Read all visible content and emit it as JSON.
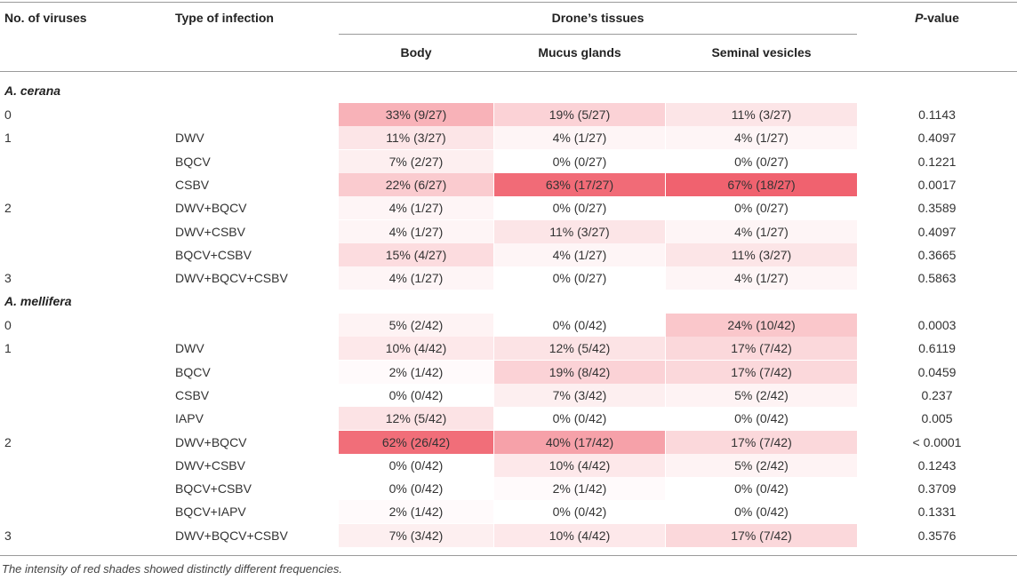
{
  "header": {
    "col_viruses": "No. of viruses",
    "col_type": "Type of infection",
    "col_tissues": "Drone’s tissues",
    "col_body": "Body",
    "col_mucus": "Mucus glands",
    "col_seminal": "Seminal vesicles",
    "col_p_letter": "P",
    "col_p_rest": "-value"
  },
  "sections": [
    {
      "name": "A. cerana",
      "rows": [
        {
          "num": "0",
          "type": "",
          "body": "33% (9/27)",
          "mucus": "19% (5/27)",
          "seminal": "11% (3/27)",
          "p": "0.1143",
          "body_pct": 33,
          "mucus_pct": 19,
          "seminal_pct": 11
        },
        {
          "num": "1",
          "type": "DWV",
          "body": "11% (3/27)",
          "mucus": "4% (1/27)",
          "seminal": "4% (1/27)",
          "p": "0.4097",
          "body_pct": 11,
          "mucus_pct": 4,
          "seminal_pct": 4
        },
        {
          "num": "",
          "type": "BQCV",
          "body": "7% (2/27)",
          "mucus": "0% (0/27)",
          "seminal": "0% (0/27)",
          "p": "0.1221",
          "body_pct": 7,
          "mucus_pct": 0,
          "seminal_pct": 0
        },
        {
          "num": "",
          "type": "CSBV",
          "body": "22% (6/27)",
          "mucus": "63% (17/27)",
          "seminal": "67% (18/27)",
          "p": "0.0017",
          "body_pct": 22,
          "mucus_pct": 63,
          "seminal_pct": 67
        },
        {
          "num": "2",
          "type": "DWV+BQCV",
          "body": "4% (1/27)",
          "mucus": "0% (0/27)",
          "seminal": "0% (0/27)",
          "p": "0.3589",
          "body_pct": 4,
          "mucus_pct": 0,
          "seminal_pct": 0
        },
        {
          "num": "",
          "type": "DWV+CSBV",
          "body": "4% (1/27)",
          "mucus": "11% (3/27)",
          "seminal": "4% (1/27)",
          "p": "0.4097",
          "body_pct": 4,
          "mucus_pct": 11,
          "seminal_pct": 4
        },
        {
          "num": "",
          "type": "BQCV+CSBV",
          "body": "15% (4/27)",
          "mucus": "4% (1/27)",
          "seminal": "11% (3/27)",
          "p": "0.3665",
          "body_pct": 15,
          "mucus_pct": 4,
          "seminal_pct": 11
        },
        {
          "num": "3",
          "type": "DWV+BQCV+CSBV",
          "body": "4% (1/27)",
          "mucus": "0% (0/27)",
          "seminal": "4% (1/27)",
          "p": "0.5863",
          "body_pct": 4,
          "mucus_pct": 0,
          "seminal_pct": 4
        }
      ]
    },
    {
      "name": "A. mellifera",
      "rows": [
        {
          "num": "0",
          "type": "",
          "body": "5% (2/42)",
          "mucus": "0% (0/42)",
          "seminal": "24% (10/42)",
          "p": "0.0003",
          "body_pct": 5,
          "mucus_pct": 0,
          "seminal_pct": 24
        },
        {
          "num": "1",
          "type": "DWV",
          "body": "10% (4/42)",
          "mucus": "12% (5/42)",
          "seminal": "17% (7/42)",
          "p": "0.6119",
          "body_pct": 10,
          "mucus_pct": 12,
          "seminal_pct": 17
        },
        {
          "num": "",
          "type": "BQCV",
          "body": "2% (1/42)",
          "mucus": "19% (8/42)",
          "seminal": "17% (7/42)",
          "p": "0.0459",
          "body_pct": 2,
          "mucus_pct": 19,
          "seminal_pct": 17
        },
        {
          "num": "",
          "type": "CSBV",
          "body": "0% (0/42)",
          "mucus": "7% (3/42)",
          "seminal": "5% (2/42)",
          "p": "0.237",
          "body_pct": 0,
          "mucus_pct": 7,
          "seminal_pct": 5
        },
        {
          "num": "",
          "type": "IAPV",
          "body": "12% (5/42)",
          "mucus": "0% (0/42)",
          "seminal": "0% (0/42)",
          "p": "0.005",
          "body_pct": 12,
          "mucus_pct": 0,
          "seminal_pct": 0
        },
        {
          "num": "2",
          "type": "DWV+BQCV",
          "body": "62% (26/42)",
          "mucus": "40% (17/42)",
          "seminal": "17% (7/42)",
          "p": "< 0.0001",
          "body_pct": 62,
          "mucus_pct": 40,
          "seminal_pct": 17
        },
        {
          "num": "",
          "type": "DWV+CSBV",
          "body": "0% (0/42)",
          "mucus": "10% (4/42)",
          "seminal": "5% (2/42)",
          "p": "0.1243",
          "body_pct": 0,
          "mucus_pct": 10,
          "seminal_pct": 5
        },
        {
          "num": "",
          "type": "BQCV+CSBV",
          "body": "0% (0/42)",
          "mucus": "2% (1/42)",
          "seminal": "0% (0/42)",
          "p": "0.3709",
          "body_pct": 0,
          "mucus_pct": 2,
          "seminal_pct": 0
        },
        {
          "num": "",
          "type": "BQCV+IAPV",
          "body": "2% (1/42)",
          "mucus": "0% (0/42)",
          "seminal": "0% (0/42)",
          "p": "0.1331",
          "body_pct": 2,
          "mucus_pct": 0,
          "seminal_pct": 0
        },
        {
          "num": "3",
          "type": "DWV+BQCV+CSBV",
          "body": "7% (3/42)",
          "mucus": "10% (4/42)",
          "seminal": "17% (7/42)",
          "p": "0.3576",
          "body_pct": 7,
          "mucus_pct": 10,
          "seminal_pct": 17
        }
      ]
    }
  ],
  "footnote": "The intensity of red shades showed distinctly different frequencies.",
  "colors": {
    "heat_max": "#ef5a67",
    "heat_min": "#ffffff",
    "rule": "#9a9a9a"
  }
}
